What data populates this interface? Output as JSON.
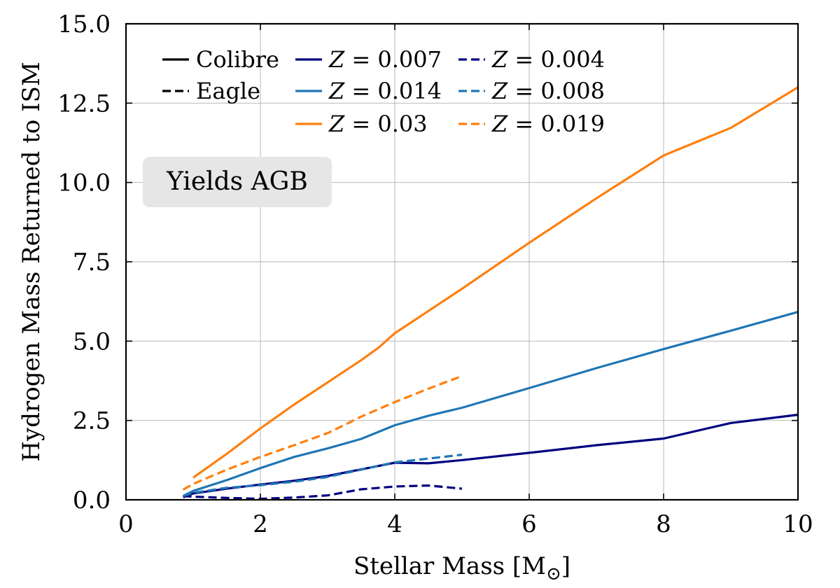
{
  "chart_data": {
    "type": "line",
    "title": "",
    "xlabel": "Stellar Mass [M",
    "xlabel_sub": "⊙",
    "xlabel_end": "]",
    "ylabel": "Hydrogen Mass Returned to ISM",
    "xlim": [
      0,
      10
    ],
    "ylim": [
      0,
      15
    ],
    "xticks": [
      0,
      2,
      4,
      6,
      8,
      10
    ],
    "xtick_labels": [
      "0",
      "2",
      "4",
      "6",
      "8",
      "10"
    ],
    "yticks": [
      0,
      2.5,
      5,
      7.5,
      10,
      12.5,
      15
    ],
    "ytick_labels": [
      "0.0",
      "2.5",
      "5.0",
      "7.5",
      "10.0",
      "12.5",
      "15.0"
    ],
    "grid": true,
    "legend_position": "top-left",
    "annotation": "Yields AGB",
    "legend_style": [
      {
        "label": "Colibre",
        "dash": "solid",
        "color": "#000000"
      },
      {
        "label": "Eagle",
        "dash": "dashed",
        "color": "#000000"
      }
    ],
    "series": [
      {
        "name": "Z = 0.007",
        "z_label": "Z",
        "value_label": "= 0.007",
        "group": "Colibre",
        "dash": "solid",
        "color": "#000080",
        "x": [
          0.85,
          1,
          1.5,
          2,
          2.5,
          3,
          4,
          4.5,
          5,
          6,
          7,
          8,
          9,
          10
        ],
        "y": [
          0.08,
          0.2,
          0.35,
          0.48,
          0.6,
          0.75,
          1.17,
          1.15,
          1.25,
          1.48,
          1.72,
          1.93,
          2.42,
          2.68
        ]
      },
      {
        "name": "Z = 0.014",
        "z_label": "Z",
        "value_label": "= 0.014",
        "group": "Colibre",
        "dash": "solid",
        "color": "#1f77b4",
        "x": [
          0.85,
          1,
          1.5,
          2,
          2.5,
          3,
          3.5,
          4,
          4.5,
          5,
          6,
          7,
          8,
          9,
          10
        ],
        "y": [
          0.12,
          0.28,
          0.62,
          1.0,
          1.35,
          1.62,
          1.92,
          2.35,
          2.65,
          2.9,
          3.52,
          4.15,
          4.75,
          5.33,
          5.92
        ]
      },
      {
        "name": "Z = 0.03",
        "z_label": "Z",
        "value_label": "= 0.03",
        "group": "Colibre",
        "dash": "solid",
        "color": "#ff7f0e",
        "x": [
          1,
          1.5,
          2,
          2.5,
          3,
          3.5,
          3.75,
          4,
          5,
          6,
          7,
          8,
          9,
          10
        ],
        "y": [
          0.7,
          1.45,
          2.25,
          3.0,
          3.7,
          4.4,
          4.78,
          5.25,
          6.65,
          8.1,
          9.5,
          10.85,
          11.72,
          13.0
        ]
      },
      {
        "name": "Z = 0.004",
        "z_label": "Z",
        "value_label": "= 0.004",
        "group": "Eagle",
        "dash": "dashed",
        "color": "#000080",
        "x": [
          0.85,
          1,
          1.5,
          2,
          2.5,
          3,
          3.5,
          4,
          4.5,
          5
        ],
        "y": [
          0.12,
          0.1,
          0.06,
          0.03,
          0.07,
          0.14,
          0.33,
          0.42,
          0.45,
          0.35
        ]
      },
      {
        "name": "Z = 0.008",
        "z_label": "Z",
        "value_label": "= 0.008",
        "group": "Eagle",
        "dash": "dashed",
        "color": "#1f77b4",
        "x": [
          0.85,
          1,
          1.5,
          2,
          2.5,
          3,
          3.5,
          4,
          4.5,
          5
        ],
        "y": [
          0.12,
          0.22,
          0.38,
          0.46,
          0.57,
          0.72,
          0.95,
          1.18,
          1.3,
          1.42
        ]
      },
      {
        "name": "Z = 0.019",
        "z_label": "Z",
        "value_label": "= 0.019",
        "group": "Eagle",
        "dash": "dashed",
        "color": "#ff7f0e",
        "x": [
          0.85,
          1,
          1.5,
          2,
          2.5,
          3,
          3.5,
          4,
          4.5,
          5
        ],
        "y": [
          0.32,
          0.5,
          0.95,
          1.35,
          1.72,
          2.1,
          2.62,
          3.08,
          3.5,
          3.9
        ]
      }
    ]
  }
}
